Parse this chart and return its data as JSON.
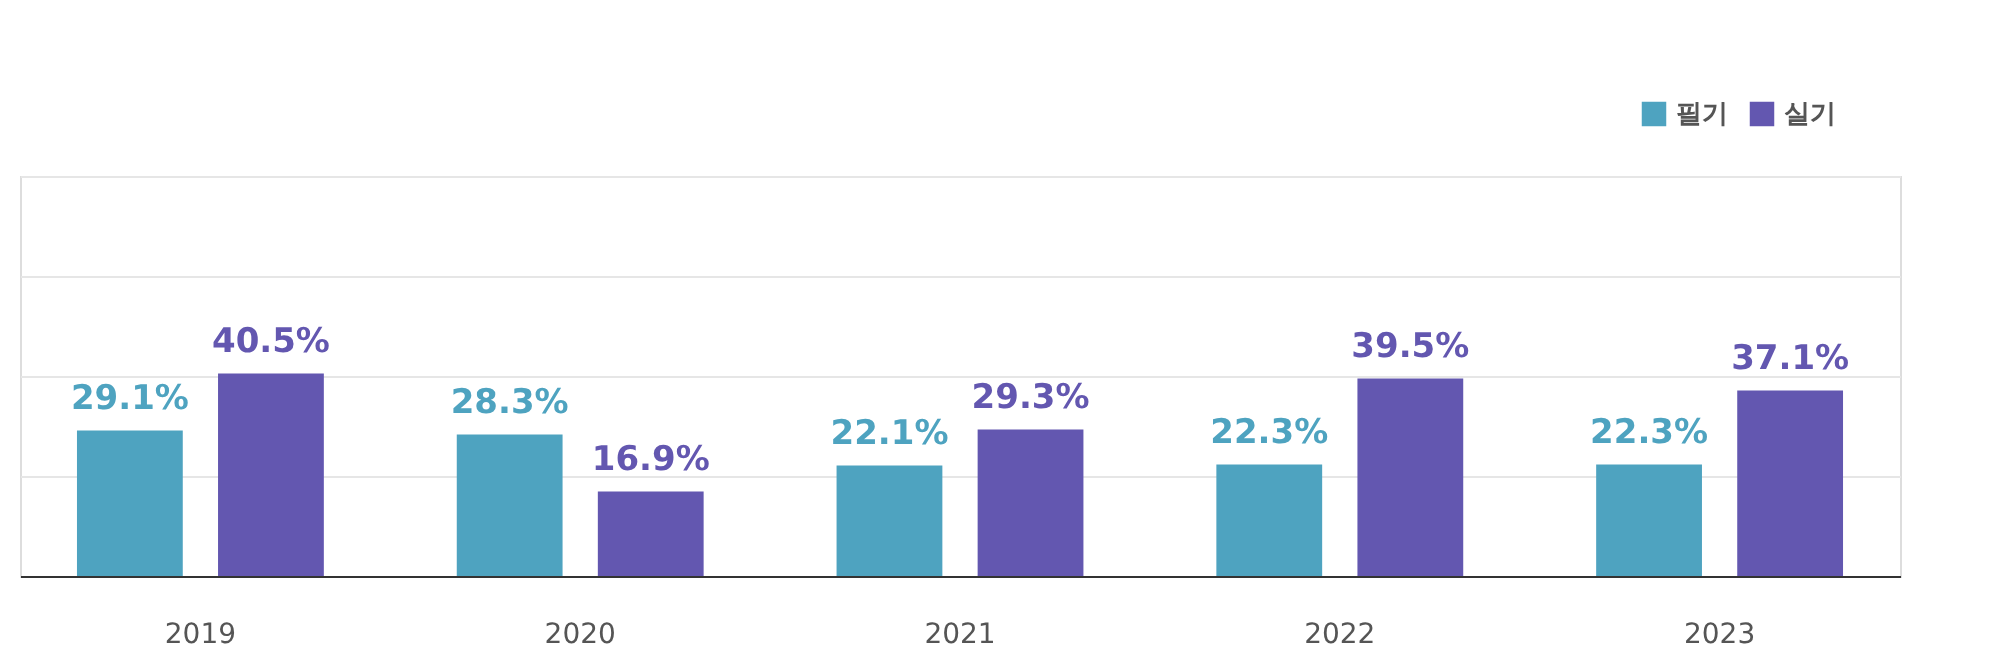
{
  "chart_data": {
    "type": "bar",
    "categories": [
      "2019",
      "2020",
      "2021",
      "2022",
      "2023"
    ],
    "series": [
      {
        "name": "필기",
        "color": "#4ea3c0",
        "values": [
          29.1,
          28.3,
          22.1,
          22.3,
          22.3
        ],
        "value_labels": [
          "29.1%",
          "28.3%",
          "22.1%",
          "22.3%",
          "22.3%"
        ]
      },
      {
        "name": "실기",
        "color": "#6357b0",
        "values": [
          40.5,
          16.9,
          29.3,
          39.5,
          37.1
        ],
        "value_labels": [
          "40.5%",
          "16.9%",
          "29.3%",
          "39.5%",
          "37.1%"
        ]
      }
    ],
    "ylim": [
      0,
      80
    ],
    "grid": "y",
    "legend": "top right"
  }
}
